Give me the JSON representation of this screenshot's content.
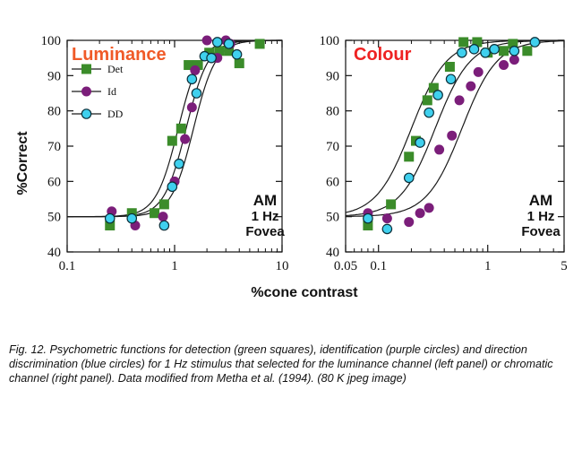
{
  "figure": {
    "ylabel": "%Correct",
    "xlabel": "%cone contrast",
    "caption": "Fig. 12. Psychometric functions for detection (green squares), identification (purple circles) and direction discrimination (blue circles) for 1 Hz stimulus that selected for the luminance channel (left panel) or chromatic channel (right panel). Data modified from Metha et al. (1994). (80 K jpeg image)"
  },
  "colors": {
    "det": "#3b8c2a",
    "id": "#7b1e7a",
    "dd": "#3fd0ee",
    "title": "#f05a28",
    "title_colour": "#ee2222",
    "curve": "#1a1a1a",
    "axis": "#111111"
  },
  "chart_data": [
    {
      "type": "scatter",
      "title": "Luminance",
      "annotation": [
        "AM",
        "1 Hz",
        "Fovea"
      ],
      "xscale": "log",
      "xlim": [
        0.1,
        10
      ],
      "ylim": [
        40,
        100
      ],
      "xticks": [
        0.1,
        1,
        10
      ],
      "xtick_labels": [
        "0.1",
        "1",
        "10"
      ],
      "yticks": [
        40,
        50,
        60,
        70,
        80,
        90,
        100
      ],
      "ytick_labels": [
        "40",
        "50",
        "60",
        "70",
        "80",
        "90",
        "100"
      ],
      "legend": [
        "Det",
        "Id",
        "DD"
      ],
      "legend_position": "top-left",
      "series": [
        {
          "name": "Det",
          "marker": "square",
          "x": [
            0.25,
            0.4,
            0.65,
            0.8,
            0.95,
            1.15,
            1.35,
            1.65,
            2.1,
            2.6,
            3.2,
            4.0,
            6.2
          ],
          "y": [
            47.5,
            51,
            51,
            53.5,
            71.5,
            75,
            93,
            93,
            96.5,
            97,
            97,
            93.5,
            99
          ]
        },
        {
          "name": "Id",
          "marker": "circle",
          "x": [
            0.26,
            0.43,
            0.78,
            1.0,
            1.25,
            1.45,
            1.55,
            2.0,
            2.5,
            3.0,
            3.3
          ],
          "y": [
            51.5,
            47.5,
            50,
            60,
            72,
            81,
            91.5,
            100,
            95,
            100,
            99
          ]
        },
        {
          "name": "DD",
          "marker": "circle",
          "x": [
            0.25,
            0.4,
            0.8,
            0.95,
            1.1,
            1.45,
            1.6,
            1.9,
            2.2,
            2.5,
            3.2,
            3.8
          ],
          "y": [
            49.5,
            49.5,
            47.5,
            58.5,
            65,
            89,
            85,
            95.5,
            95,
            99.5,
            99,
            96
          ]
        }
      ]
    },
    {
      "type": "scatter",
      "title": "Colour",
      "annotation": [
        "AM",
        "1 Hz",
        "Fovea"
      ],
      "xscale": "log",
      "xlim": [
        0.05,
        5
      ],
      "ylim": [
        40,
        100
      ],
      "xticks": [
        0.05,
        0.1,
        1,
        5
      ],
      "xtick_labels": [
        "0.05",
        "0.1",
        "1",
        "5"
      ],
      "yticks": [
        40,
        50,
        60,
        70,
        80,
        90,
        100
      ],
      "ytick_labels": [
        "40",
        "50",
        "60",
        "70",
        "80",
        "90",
        "100"
      ],
      "series": [
        {
          "name": "Det",
          "marker": "square",
          "x": [
            0.08,
            0.13,
            0.19,
            0.22,
            0.28,
            0.32,
            0.45,
            0.6,
            0.8,
            1.0,
            1.4,
            1.7,
            2.3
          ],
          "y": [
            47.5,
            53.5,
            67,
            71.5,
            83,
            86.5,
            92.5,
            99.5,
            99.5,
            96.5,
            97,
            99,
            97
          ]
        },
        {
          "name": "Id",
          "marker": "circle",
          "x": [
            0.08,
            0.12,
            0.19,
            0.24,
            0.29,
            0.36,
            0.47,
            0.55,
            0.7,
            0.82,
            1.4,
            1.75
          ],
          "y": [
            51,
            49.5,
            48.5,
            51,
            52.5,
            69,
            73,
            83,
            87,
            91,
            93,
            94.5
          ]
        },
        {
          "name": "DD",
          "marker": "circle",
          "x": [
            0.08,
            0.12,
            0.19,
            0.24,
            0.29,
            0.35,
            0.46,
            0.58,
            0.75,
            0.95,
            1.15,
            1.75,
            2.7
          ],
          "y": [
            49.5,
            46.5,
            61,
            71,
            79.5,
            84.5,
            89,
            96.5,
            97.5,
            96.5,
            97.5,
            97,
            99.5
          ]
        }
      ]
    }
  ]
}
